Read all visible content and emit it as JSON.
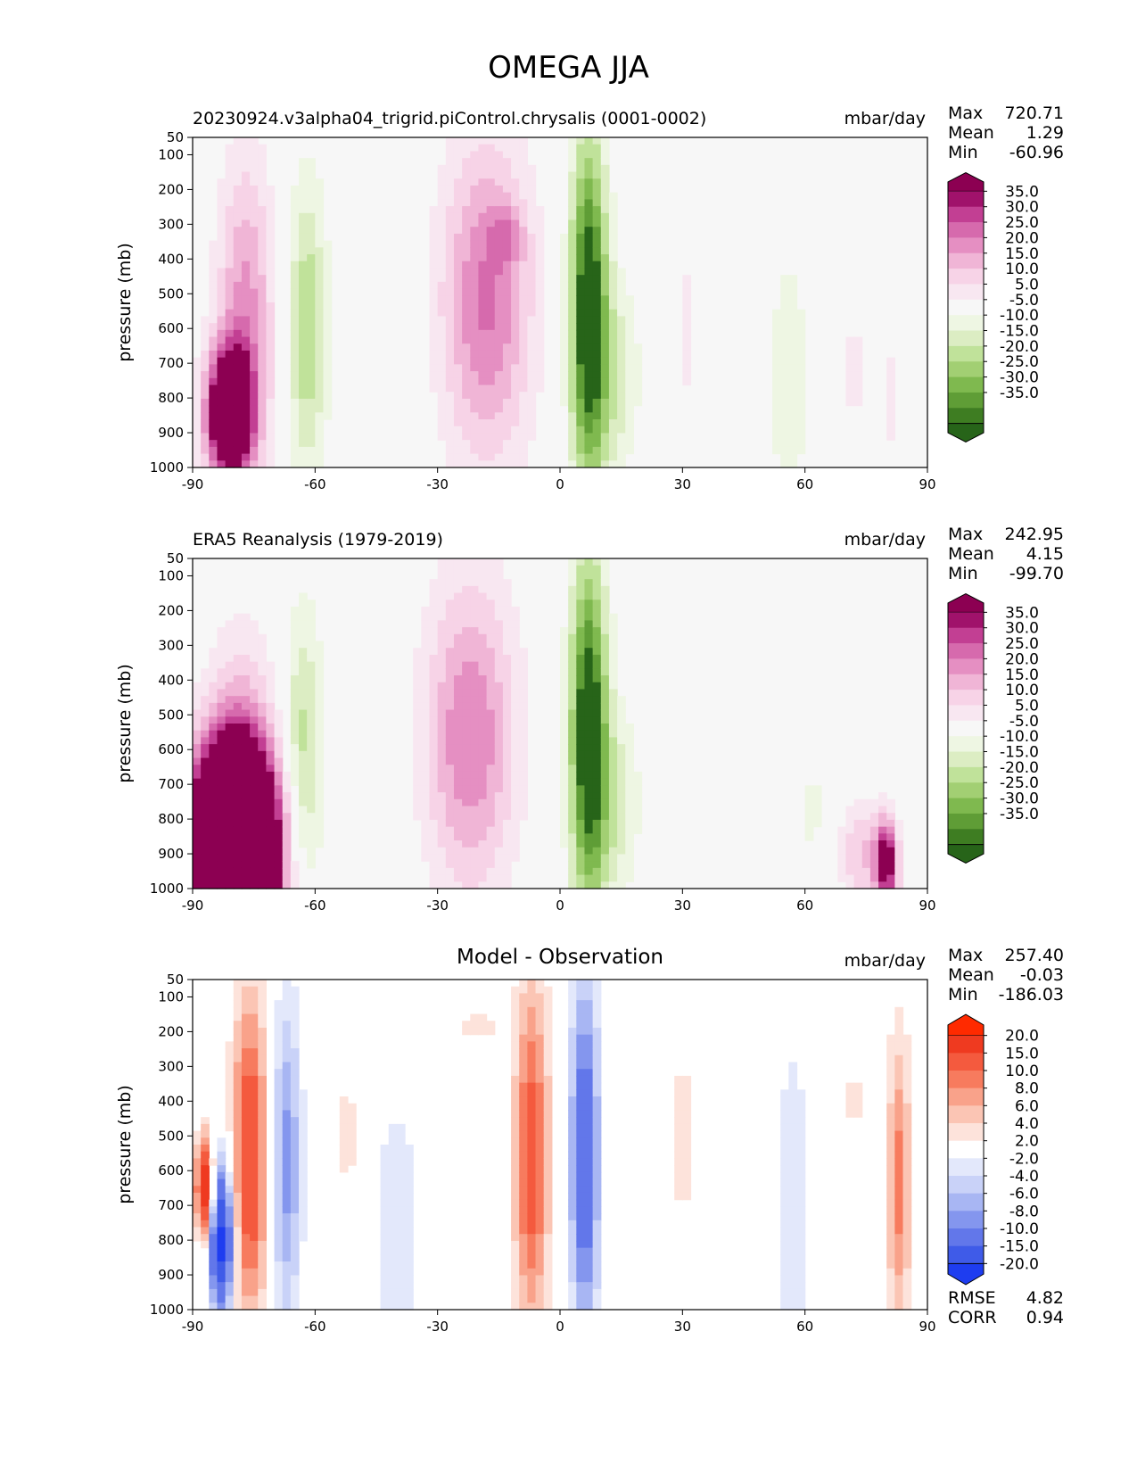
{
  "title": "OMEGA JJA",
  "colors": {
    "field_pos": [
      "#f7f7f7",
      "#f8e7f1",
      "#f7d3e7",
      "#f0b5d6",
      "#e58fc2",
      "#d66aad",
      "#c23f93",
      "#a0126b",
      "#8c0052"
    ],
    "field_neg": [
      "#f7f7f7",
      "#eef6e3",
      "#dcedc3",
      "#c0e29a",
      "#a2cf73",
      "#7fb94f",
      "#5f9d36",
      "#3e7d22",
      "#276419"
    ],
    "diff_pos": [
      "#ffffff",
      "#fde3db",
      "#fbc5b4",
      "#f9a28a",
      "#f77b5e",
      "#f45a3e",
      "#ef3a20",
      "#ff2a00"
    ],
    "diff_neg": [
      "#ffffff",
      "#e3e8fb",
      "#c9d2f8",
      "#a8b6f3",
      "#8496ee",
      "#6277ea",
      "#3f5be8",
      "#1e3df0"
    ]
  },
  "chart_data": [
    {
      "type": "heatmap",
      "title": "20230924.v3alpha04_trigrid.piControl.chrysalis (0001-0002)",
      "units": "mbar/day",
      "ylabel": "pressure (mb)",
      "xlim": [
        -90,
        90
      ],
      "ylim": [
        1000,
        50
      ],
      "xticks": [
        -90,
        -60,
        -30,
        0,
        30,
        60,
        90
      ],
      "yticks": [
        50,
        100,
        200,
        300,
        400,
        500,
        600,
        700,
        800,
        900,
        1000
      ],
      "stats": {
        "Max": "720.71",
        "Mean": "1.29",
        "Min": "-60.96"
      },
      "colorbar_levels": [
        "35.0",
        "30.0",
        "25.0",
        "20.0",
        "15.0",
        "10.0",
        "5.0",
        "-5.0",
        "-10.0",
        "-15.0",
        "-20.0",
        "-25.0",
        "-30.0",
        "-35.0"
      ],
      "features": [
        {
          "lat": -77,
          "p": 560,
          "slat": 5,
          "sp": 320,
          "amp": 22
        },
        {
          "lat": -81,
          "p": 850,
          "slat": 4,
          "sp": 130,
          "amp": 60
        },
        {
          "lat": -62,
          "p": 600,
          "slat": 3.5,
          "sp": 300,
          "amp": -20
        },
        {
          "lat": -18,
          "p": 520,
          "slat": 8,
          "sp": 330,
          "amp": 26
        },
        {
          "lat": -13,
          "p": 330,
          "slat": 3,
          "sp": 60,
          "amp": 10
        },
        {
          "lat": 7,
          "p": 560,
          "slat": 3.2,
          "sp": 360,
          "amp": -45
        },
        {
          "lat": 14,
          "p": 740,
          "slat": 4,
          "sp": 200,
          "amp": -12
        },
        {
          "lat": 31,
          "p": 600,
          "slat": 2,
          "sp": 260,
          "amp": 6
        },
        {
          "lat": 56,
          "p": 750,
          "slat": 4,
          "sp": 330,
          "amp": -8
        },
        {
          "lat": 72,
          "p": 720,
          "slat": 1.5,
          "sp": 220,
          "amp": 7
        },
        {
          "lat": 81,
          "p": 800,
          "slat": 1.5,
          "sp": 200,
          "amp": 6
        }
      ]
    },
    {
      "type": "heatmap",
      "title": "ERA5 Reanalysis (1979-2019)",
      "units": "mbar/day",
      "ylabel": "pressure (mb)",
      "xlim": [
        -90,
        90
      ],
      "ylim": [
        1000,
        50
      ],
      "xticks": [
        -90,
        -60,
        -30,
        0,
        30,
        60,
        90
      ],
      "yticks": [
        50,
        100,
        200,
        300,
        400,
        500,
        600,
        700,
        800,
        900,
        1000
      ],
      "stats": {
        "Max": "242.95",
        "Mean": "4.15",
        "Min": "-99.70"
      },
      "colorbar_levels": [
        "35.0",
        "30.0",
        "25.0",
        "20.0",
        "15.0",
        "10.0",
        "5.0",
        "-5.0",
        "-10.0",
        "-15.0",
        "-20.0",
        "-25.0",
        "-30.0",
        "-35.0"
      ],
      "features": [
        {
          "lat": -78,
          "p": 560,
          "slat": 6,
          "sp": 260,
          "amp": 12
        },
        {
          "lat": -80,
          "p": 900,
          "slat": 7,
          "sp": 200,
          "amp": 140
        },
        {
          "lat": -63,
          "p": 620,
          "slat": 3.5,
          "sp": 300,
          "amp": -18
        },
        {
          "lat": -22,
          "p": 560,
          "slat": 8,
          "sp": 320,
          "amp": 25
        },
        {
          "lat": 7,
          "p": 560,
          "slat": 3.2,
          "sp": 360,
          "amp": -45
        },
        {
          "lat": 14,
          "p": 760,
          "slat": 4,
          "sp": 200,
          "amp": -12
        },
        {
          "lat": 36,
          "p": 780,
          "slat": 2,
          "sp": 200,
          "amp": 5
        },
        {
          "lat": 62,
          "p": 780,
          "slat": 2,
          "sp": 250,
          "amp": -6
        },
        {
          "lat": 80,
          "p": 930,
          "slat": 2,
          "sp": 90,
          "amp": 40
        },
        {
          "lat": 74,
          "p": 900,
          "slat": 4,
          "sp": 110,
          "amp": 15
        }
      ]
    },
    {
      "type": "heatmap",
      "title": "Model - Observation",
      "units": "mbar/day",
      "ylabel": "pressure (mb)",
      "xlim": [
        -90,
        90
      ],
      "ylim": [
        1000,
        50
      ],
      "xticks": [
        -90,
        -60,
        -30,
        0,
        30,
        60,
        90
      ],
      "yticks": [
        50,
        100,
        200,
        300,
        400,
        500,
        600,
        700,
        800,
        900,
        1000
      ],
      "stats": {
        "Max": "257.40",
        "Mean": "-0.03",
        "Min": "-186.03"
      },
      "metrics": {
        "RMSE": "4.82",
        "CORR": "0.94"
      },
      "colorbar_levels": [
        "20.0",
        "15.0",
        "10.0",
        "8.0",
        "6.0",
        "4.0",
        "2.0",
        "-2.0",
        "-4.0",
        "-6.0",
        "-8.0",
        "-10.0",
        "-15.0",
        "-20.0"
      ],
      "features": [
        {
          "lat": -76,
          "p": 560,
          "slat": 3,
          "sp": 320,
          "amp": 14
        },
        {
          "lat": -67,
          "p": 580,
          "slat": 2.5,
          "sp": 330,
          "amp": -9
        },
        {
          "lat": -83,
          "p": 800,
          "slat": 2,
          "sp": 150,
          "amp": -22
        },
        {
          "lat": -87,
          "p": 650,
          "slat": 1.5,
          "sp": 100,
          "amp": 20
        },
        {
          "lat": -52,
          "p": 500,
          "slat": 2,
          "sp": 250,
          "amp": 2.5
        },
        {
          "lat": -40,
          "p": 760,
          "slat": 4,
          "sp": 260,
          "amp": -4
        },
        {
          "lat": -20,
          "p": 180,
          "slat": 4,
          "sp": 40,
          "amp": 3
        },
        {
          "lat": -7,
          "p": 560,
          "slat": 3,
          "sp": 360,
          "amp": 12
        },
        {
          "lat": 6,
          "p": 560,
          "slat": 2.5,
          "sp": 360,
          "amp": -14
        },
        {
          "lat": 30,
          "p": 500,
          "slat": 3,
          "sp": 300,
          "amp": 2.5
        },
        {
          "lat": 57,
          "p": 700,
          "slat": 3,
          "sp": 350,
          "amp": -4
        },
        {
          "lat": 83,
          "p": 640,
          "slat": 2,
          "sp": 300,
          "amp": 9
        },
        {
          "lat": 72,
          "p": 400,
          "slat": 2,
          "sp": 120,
          "amp": 2.5
        }
      ]
    }
  ]
}
